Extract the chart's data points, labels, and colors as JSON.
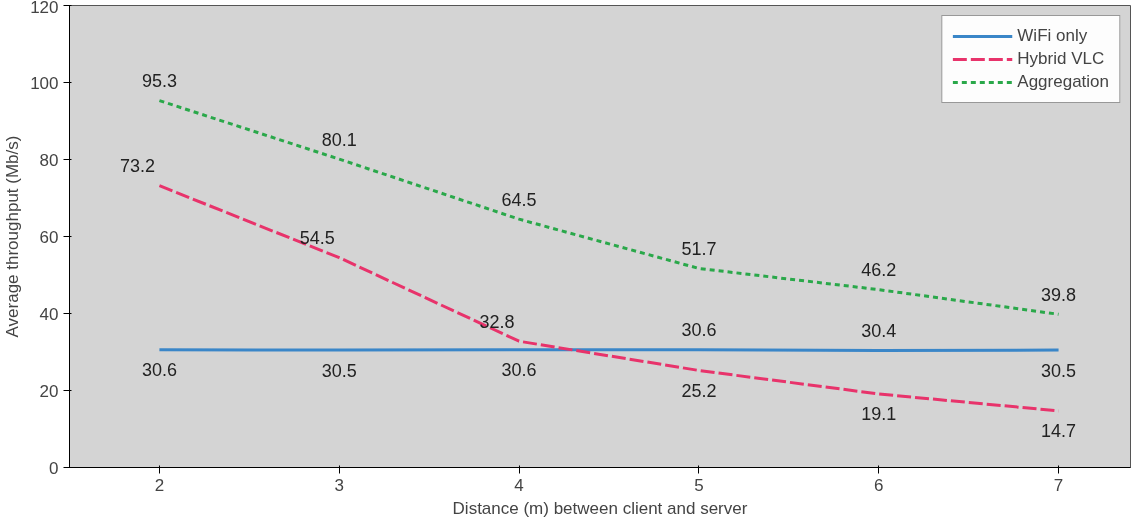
{
  "chart_data": {
    "type": "line",
    "xlabel": "Distance (m) between client and server",
    "ylabel": "Average throughput (Mb/s)",
    "x": [
      2,
      3,
      4,
      5,
      6,
      7
    ],
    "series": [
      {
        "name": "WiFi only",
        "color": "#3a86c8",
        "line_style": "solid",
        "values": [
          30.6,
          30.5,
          30.6,
          30.6,
          30.4,
          30.5
        ]
      },
      {
        "name": "Hybrid VLC",
        "color": "#e8336b",
        "line_style": "dashed",
        "values": [
          73.2,
          54.5,
          32.8,
          25.2,
          19.1,
          14.7
        ]
      },
      {
        "name": "Aggregation",
        "color": "#2aa84a",
        "line_style": "dotted",
        "values": [
          95.3,
          80.1,
          64.5,
          51.7,
          46.2,
          39.8
        ]
      }
    ],
    "xlim": [
      1.5,
      7.4
    ],
    "ylim": [
      0,
      120
    ],
    "xticks": [
      2,
      3,
      4,
      5,
      6,
      7
    ],
    "yticks": [
      0,
      20,
      40,
      60,
      80,
      100,
      120
    ],
    "grid": false,
    "legend": "top right",
    "data_labels": true,
    "marker": "none"
  }
}
